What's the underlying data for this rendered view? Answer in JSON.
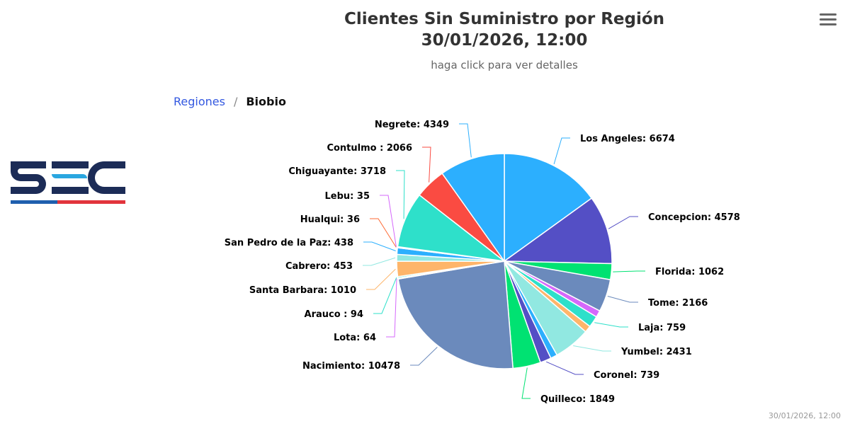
{
  "title_line1": "Clientes Sin Suministro por Región",
  "title_line2": "30/01/2026, 12:00",
  "subtitle": "haga click para ver detalles",
  "breadcrumb": {
    "root": "Regiones",
    "separator": "/",
    "current": "Biobio"
  },
  "logo_text": "SEC",
  "menu_icon": "hamburger-menu-icon",
  "footer_timestamp": "30/01/2026, 12:00",
  "chart_data": {
    "type": "pie",
    "title": "Clientes Sin Suministro por Región",
    "points": [
      {
        "name": "Los Angeles",
        "value": 6674,
        "color": "#2caffe",
        "label": "Los Angeles: 6674"
      },
      {
        "name": "Concepcion",
        "value": 4578,
        "color": "#544fc5",
        "label": "Concepcion: 4578"
      },
      {
        "name": "Florida",
        "value": 1062,
        "color": "#00e272",
        "label": "Florida: 1062"
      },
      {
        "name": "Tome",
        "value": 2166,
        "color": "#6b8abc",
        "label": "Tome: 2166"
      },
      {
        "name": "",
        "value": 450,
        "color": "#d568fb",
        "label": ""
      },
      {
        "name": "Laja",
        "value": 759,
        "color": "#2ee0ca",
        "label": "Laja: 759"
      },
      {
        "name": "",
        "value": 450,
        "color": "#feb56a",
        "label": ""
      },
      {
        "name": "Yumbel",
        "value": 2431,
        "color": "#91e8e1",
        "label": "Yumbel: 2431"
      },
      {
        "name": "",
        "value": 450,
        "color": "#2caffe",
        "label": ""
      },
      {
        "name": "Coronel",
        "value": 739,
        "color": "#544fc5",
        "label": "Coronel: 739"
      },
      {
        "name": "Quilleco",
        "value": 1849,
        "color": "#00e272",
        "label": "Quilleco: 1849"
      },
      {
        "name": "Nacimiento",
        "value": 10478,
        "color": "#6b8abc",
        "label": "Nacimiento: 10478"
      },
      {
        "name": "Lota",
        "value": 64,
        "color": "#d568fb",
        "label": "Lota: 64"
      },
      {
        "name": "Arauco",
        "value": 94,
        "color": "#2ee0ca",
        "label": "Arauco : 94"
      },
      {
        "name": "Santa Barbara",
        "value": 1010,
        "color": "#feb56a",
        "label": "Santa Barbara: 1010"
      },
      {
        "name": "Cabrero",
        "value": 453,
        "color": "#91e8e1",
        "label": "Cabrero: 453"
      },
      {
        "name": "San Pedro de la Paz",
        "value": 438,
        "color": "#2caffe",
        "label": "San Pedro de la Paz: 438"
      },
      {
        "name": "Hualqui",
        "value": 36,
        "color": "#fe6a35",
        "label": "Hualqui: 36"
      },
      {
        "name": "Lebu",
        "value": 35,
        "color": "#d568fb",
        "label": "Lebu: 35"
      },
      {
        "name": "Chiguayante",
        "value": 3718,
        "color": "#2ee0ca",
        "label": "Chiguayante: 3718"
      },
      {
        "name": "Contulmo",
        "value": 2066,
        "color": "#fa4b42",
        "label": "Contulmo : 2066"
      },
      {
        "name": "Negrete",
        "value": 4349,
        "color": "#2caffe",
        "label": "Negrete: 4349"
      }
    ]
  }
}
